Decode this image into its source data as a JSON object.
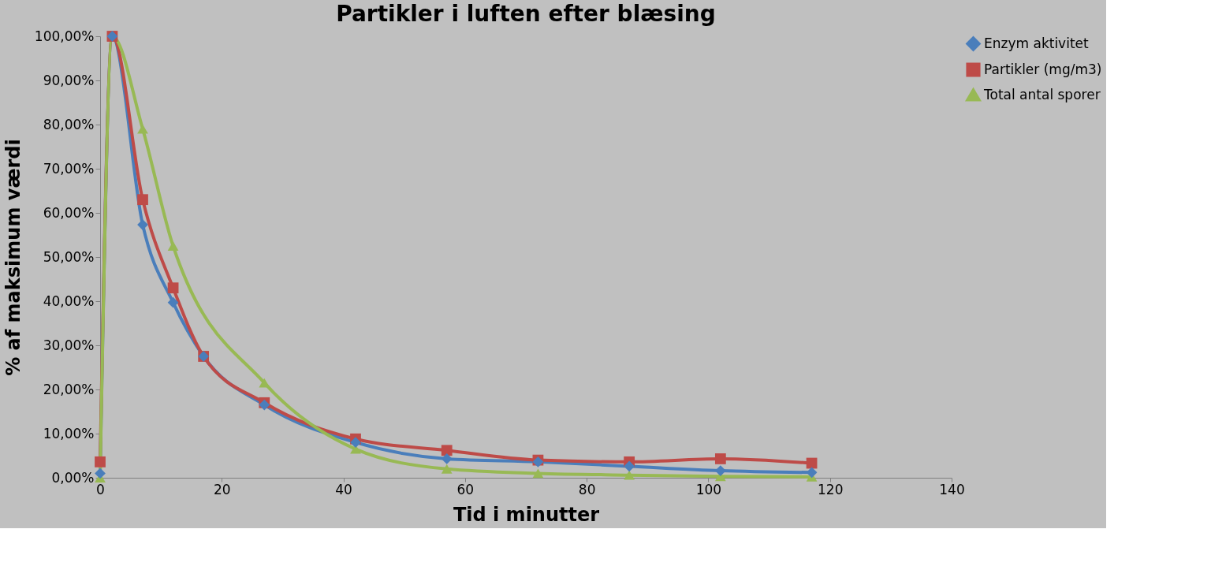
{
  "chart_data": {
    "type": "line",
    "title": "Partikler i luften efter blæsing",
    "xlabel": "Tid i minutter",
    "ylabel": "% af maksimum værdi",
    "x": [
      0,
      2,
      7,
      12,
      17,
      27,
      42,
      57,
      72,
      87,
      102,
      117
    ],
    "series": [
      {
        "name": "Enzym aktivitet",
        "color": "#4a7ebb",
        "marker": "diamond",
        "values": [
          1,
          100,
          57.3,
          39.7,
          27.5,
          16.5,
          8,
          4.3,
          3.6,
          2.6,
          1.6,
          1.2
        ]
      },
      {
        "name": "Partikler (mg/m3)",
        "color": "#be4b48",
        "marker": "square",
        "values": [
          3.6,
          100,
          63,
          43,
          27.5,
          17,
          8.8,
          6.2,
          4,
          3.6,
          4.3,
          3.3
        ]
      },
      {
        "name": "Total antal sporer",
        "color": "#98b954",
        "marker": "triangle",
        "x": [
          0,
          2,
          7,
          12,
          27,
          42,
          57,
          72,
          87,
          102,
          117
        ],
        "values": [
          0,
          100,
          79,
          52.5,
          21.5,
          6.5,
          2,
          1,
          0.6,
          0.3,
          0.2
        ]
      }
    ],
    "xlim": [
      0,
      140
    ],
    "xticks": [
      0,
      20,
      40,
      60,
      80,
      100,
      120,
      140
    ],
    "ylim": [
      0,
      100
    ],
    "yticks": [
      {
        "value": 0,
        "label": "0,00%"
      },
      {
        "value": 10,
        "label": "10,00%"
      },
      {
        "value": 20,
        "label": "20,00%"
      },
      {
        "value": 30,
        "label": "30,00%"
      },
      {
        "value": 40,
        "label": "40,00%"
      },
      {
        "value": 50,
        "label": "50,00%"
      },
      {
        "value": 60,
        "label": "60,00%"
      },
      {
        "value": 70,
        "label": "70,00%"
      },
      {
        "value": 80,
        "label": "80,00%"
      },
      {
        "value": 90,
        "label": "90,00%"
      },
      {
        "value": 100,
        "label": "100,00%"
      }
    ],
    "grid": false,
    "legend": "right",
    "line_style": "solid"
  }
}
